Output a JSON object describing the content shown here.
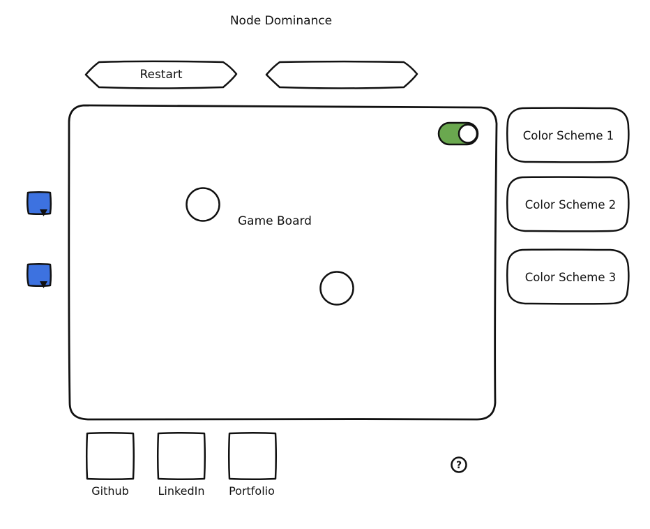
{
  "header": {
    "title": "Node Dominance"
  },
  "toolbar": {
    "restart_label": "Restart",
    "second_label": ""
  },
  "board": {
    "label": "Game Board",
    "toggle_on": true,
    "toggle_color": "#6aa84f"
  },
  "color_schemes": [
    {
      "label": "Color Scheme 1"
    },
    {
      "label": "Color Scheme 2"
    },
    {
      "label": "Color Scheme 3"
    }
  ],
  "side_controls": {
    "color": "#3d72e0"
  },
  "footer": {
    "links": [
      {
        "label": "Github"
      },
      {
        "label": "LinkedIn"
      },
      {
        "label": "Portfolio"
      }
    ],
    "help_glyph": "?"
  }
}
